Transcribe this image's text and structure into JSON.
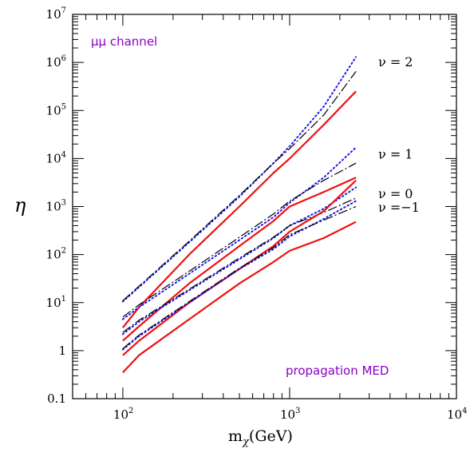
{
  "chart_data": {
    "type": "line",
    "xlabel_main": "m",
    "xlabel_sub": "χ",
    "xlabel_unit": "(GeV)",
    "ylabel": "η",
    "xscale": "log",
    "yscale": "log",
    "xlim": [
      50,
      10000
    ],
    "ylim": [
      0.1,
      10000000
    ],
    "x_ticks": [
      {
        "value": 100,
        "base": "10",
        "exp": "2"
      },
      {
        "value": 1000,
        "base": "10",
        "exp": "3"
      },
      {
        "value": 10000,
        "base": "10",
        "exp": "4"
      }
    ],
    "y_ticks": [
      {
        "value": 0.1,
        "base": "0.1",
        "exp": ""
      },
      {
        "value": 1,
        "base": "1",
        "exp": ""
      },
      {
        "value": 10,
        "base": "10",
        "exp": "1"
      },
      {
        "value": 100,
        "base": "10",
        "exp": "2"
      },
      {
        "value": 1000,
        "base": "10",
        "exp": "3"
      },
      {
        "value": 10000,
        "base": "10",
        "exp": "4"
      },
      {
        "value": 100000,
        "base": "10",
        "exp": "5"
      },
      {
        "value": 1000000,
        "base": "10",
        "exp": "6"
      },
      {
        "value": 10000000,
        "base": "10",
        "exp": "7"
      }
    ],
    "annotations": {
      "channel": "μμ channel",
      "propagation": "propagation MED"
    },
    "nu_labels": [
      {
        "text": "ν = 2",
        "y": 1000000
      },
      {
        "text": "ν = 1",
        "y": 12000
      },
      {
        "text": "ν = 0",
        "y": 1800
      },
      {
        "text": "ν =−1",
        "y": 950
      }
    ],
    "colors": {
      "red": "#ee1111",
      "blue": "#1a1aee",
      "black": "#000000"
    },
    "series": [
      {
        "group": "nu=2",
        "style": "dotted",
        "color": "blue",
        "x": [
          100,
          125,
          250,
          500,
          800,
          1000,
          1600,
          2500
        ],
        "y": [
          10.5,
          21,
          180,
          1600,
          8000,
          18000,
          120000,
          1300000
        ]
      },
      {
        "group": "nu=2",
        "style": "dashdot",
        "color": "black",
        "x": [
          100,
          125,
          250,
          500,
          800,
          1000,
          1600,
          2500
        ],
        "y": [
          11,
          22,
          190,
          1700,
          8000,
          16000,
          80000,
          650000
        ]
      },
      {
        "group": "nu=2",
        "style": "solid",
        "color": "red",
        "x": [
          100,
          125,
          250,
          500,
          800,
          1000,
          1600,
          2500
        ],
        "y": [
          3,
          8,
          100,
          1000,
          5000,
          10000,
          50000,
          250000
        ]
      },
      {
        "group": "nu=1",
        "style": "dotted",
        "color": "blue",
        "x": [
          100,
          125,
          250,
          500,
          800,
          1000,
          1600,
          2500
        ],
        "y": [
          4.5,
          8,
          40,
          200,
          600,
          1200,
          4000,
          17000
        ]
      },
      {
        "group": "nu=1",
        "style": "dashdot",
        "color": "black",
        "x": [
          100,
          125,
          250,
          500,
          800,
          1000,
          1600,
          2500
        ],
        "y": [
          5,
          9,
          45,
          230,
          700,
          1300,
          3500,
          8000
        ]
      },
      {
        "group": "nu=1",
        "style": "solid",
        "color": "red",
        "x": [
          100,
          125,
          250,
          500,
          800,
          1000,
          1600,
          2500
        ],
        "y": [
          1.6,
          3.2,
          25,
          150,
          500,
          1000,
          2000,
          4000
        ]
      },
      {
        "group": "nu=0",
        "style": "dotted",
        "color": "blue",
        "x": [
          100,
          125,
          250,
          500,
          800,
          1000,
          1600,
          2500
        ],
        "y": [
          2.2,
          4,
          18,
          80,
          220,
          400,
          900,
          2500
        ]
      },
      {
        "group": "nu=0",
        "style": "dashdot",
        "color": "black",
        "x": [
          100,
          125,
          250,
          500,
          800,
          1000,
          1600,
          2500
        ],
        "y": [
          2.4,
          4.3,
          19,
          85,
          230,
          400,
          750,
          1500
        ]
      },
      {
        "group": "nu=0",
        "style": "solid",
        "color": "red",
        "x": [
          100,
          125,
          250,
          500,
          800,
          1000,
          1600,
          2500
        ],
        "y": [
          0.8,
          1.6,
          10,
          50,
          150,
          300,
          800,
          3500
        ]
      },
      {
        "group": "nu=-1",
        "style": "dotted",
        "color": "blue",
        "x": [
          100,
          125,
          250,
          500,
          800,
          1000,
          1600,
          2500
        ],
        "y": [
          1.05,
          2,
          10,
          50,
          130,
          240,
          550,
          1300
        ]
      },
      {
        "group": "nu=-1",
        "style": "dashdot",
        "color": "black",
        "x": [
          100,
          125,
          250,
          500,
          800,
          1000,
          1600,
          2500
        ],
        "y": [
          1.1,
          2.1,
          10.5,
          52,
          140,
          260,
          520,
          1000
        ]
      },
      {
        "group": "nu=-1",
        "style": "solid",
        "color": "red",
        "x": [
          100,
          125,
          250,
          500,
          800,
          1000,
          1600,
          2500
        ],
        "y": [
          0.35,
          0.8,
          4.5,
          25,
          70,
          120,
          220,
          480
        ]
      }
    ]
  }
}
